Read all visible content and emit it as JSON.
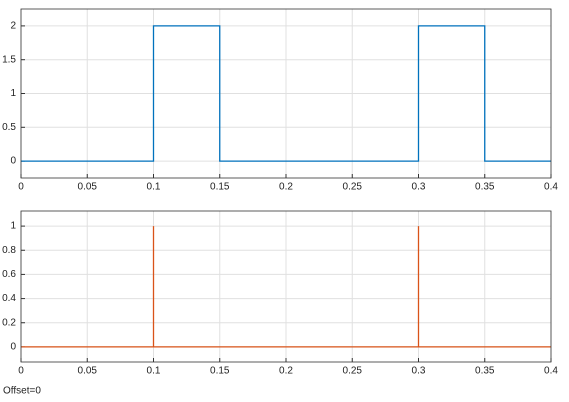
{
  "chart_data": [
    {
      "type": "line",
      "x": [
        0,
        0.1,
        0.1,
        0.15,
        0.15,
        0.3,
        0.3,
        0.35,
        0.35,
        0.4
      ],
      "values": [
        0,
        0,
        2,
        2,
        0,
        0,
        2,
        2,
        0,
        0
      ],
      "color": "#0072bd",
      "xlim": [
        0,
        0.4
      ],
      "xticks": [
        0,
        0.05,
        0.1,
        0.15,
        0.2,
        0.25,
        0.3,
        0.35,
        0.4
      ],
      "ylim": [
        -0.25,
        2.25
      ],
      "yticks": [
        0,
        0.5,
        1,
        1.5,
        2
      ],
      "grid": true
    },
    {
      "type": "line",
      "x": [
        0,
        0.1,
        0.1,
        0.1,
        0.3,
        0.3,
        0.3,
        0.4
      ],
      "values": [
        0,
        0,
        1,
        0,
        0,
        1,
        0,
        0
      ],
      "color": "#d95319",
      "xlim": [
        0,
        0.4
      ],
      "xticks": [
        0,
        0.05,
        0.1,
        0.15,
        0.2,
        0.25,
        0.3,
        0.35,
        0.4
      ],
      "ylim": [
        -0.125,
        1.125
      ],
      "yticks": [
        0,
        0.2,
        0.4,
        0.6,
        0.8,
        1
      ],
      "grid": true
    }
  ],
  "footer_text": "Offset=0"
}
